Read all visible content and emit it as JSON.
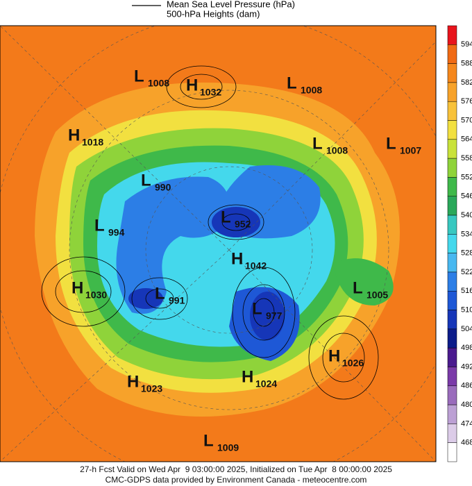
{
  "legend": {
    "items": [
      "Mean Sea Level Pressure (hPa)",
      "500-hPa Heights (dam)"
    ]
  },
  "colorbar": {
    "labels": [
      594,
      588,
      582,
      576,
      570,
      564,
      558,
      552,
      546,
      540,
      534,
      528,
      522,
      516,
      510,
      504,
      498,
      492,
      486,
      480,
      474,
      468
    ],
    "colors": [
      "#e8141c",
      "#f06a14",
      "#f5871c",
      "#f7a22a",
      "#f8c23a",
      "#f2e040",
      "#c9e23a",
      "#8fd33a",
      "#3fb94a",
      "#2aa85a",
      "#38c8c0",
      "#44d8ec",
      "#48b8f0",
      "#2c7ee6",
      "#1e58d6",
      "#1636b8",
      "#0c1c8a",
      "#4a1a8e",
      "#7a3aa8",
      "#9a6cbc",
      "#bca0d4",
      "#dccce8",
      "#ffffff"
    ]
  },
  "centers": [
    {
      "kind": "L",
      "value": "1008"
    },
    {
      "kind": "H",
      "value": "1032"
    },
    {
      "kind": "L",
      "value": "1008"
    },
    {
      "kind": "H",
      "value": "1018"
    },
    {
      "kind": "L",
      "value": "1008"
    },
    {
      "kind": "L",
      "value": "1007"
    },
    {
      "kind": "L",
      "value": "990"
    },
    {
      "kind": "L",
      "value": "994"
    },
    {
      "kind": "L",
      "value": "952"
    },
    {
      "kind": "H",
      "value": "1042"
    },
    {
      "kind": "H",
      "value": "1030"
    },
    {
      "kind": "L",
      "value": "991"
    },
    {
      "kind": "L",
      "value": "977"
    },
    {
      "kind": "L",
      "value": "1005"
    },
    {
      "kind": "H",
      "value": "1026"
    },
    {
      "kind": "H",
      "value": "1023"
    },
    {
      "kind": "H",
      "value": "1024"
    },
    {
      "kind": "L",
      "value": "1009"
    }
  ],
  "footer": [
    "27-h Fcst Valid on Wed Apr  9 03:00:00 2025, Initialized on Tue Apr  8 00:00:00 2025",
    "CMC-GDPS data provided by Environment Canada - meteocentre.com"
  ]
}
